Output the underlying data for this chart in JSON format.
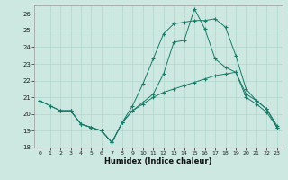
{
  "xlabel": "Humidex (Indice chaleur)",
  "background_color": "#cce8e0",
  "grid_color": "#b0d8cc",
  "line_color": "#1a7a6a",
  "ylim": [
    18,
    26.5
  ],
  "xlim": [
    -0.5,
    23.5
  ],
  "yticks": [
    18,
    19,
    20,
    21,
    22,
    23,
    24,
    25,
    26
  ],
  "xticks": [
    0,
    1,
    2,
    3,
    4,
    5,
    6,
    7,
    8,
    9,
    10,
    11,
    12,
    13,
    14,
    15,
    16,
    17,
    18,
    19,
    20,
    21,
    22,
    23
  ],
  "line1_x": [
    0,
    1,
    2,
    3,
    4,
    5,
    6,
    7,
    8,
    9,
    10,
    11,
    12,
    13,
    14,
    15,
    16,
    17,
    18,
    19,
    20,
    21,
    22,
    23
  ],
  "line1_y": [
    20.8,
    20.5,
    20.2,
    20.2,
    19.4,
    19.2,
    19.0,
    18.3,
    19.5,
    20.2,
    20.6,
    21.0,
    21.3,
    21.5,
    21.7,
    21.9,
    22.1,
    22.3,
    22.4,
    22.5,
    21.2,
    20.8,
    20.3,
    19.2
  ],
  "line2_x": [
    2,
    3,
    4,
    5,
    6,
    7,
    8,
    9,
    10,
    11,
    12,
    13,
    14,
    15,
    16,
    17,
    18,
    19,
    20,
    21,
    22,
    23
  ],
  "line2_y": [
    20.2,
    20.2,
    19.4,
    19.2,
    19.0,
    18.3,
    19.5,
    20.5,
    21.8,
    23.3,
    24.8,
    25.4,
    25.5,
    25.6,
    25.6,
    25.7,
    25.2,
    23.5,
    21.5,
    20.8,
    20.3,
    19.3
  ],
  "line3_x": [
    0,
    1,
    2,
    3,
    4,
    5,
    6,
    7,
    8,
    9,
    10,
    11,
    12,
    13,
    14,
    15,
    16,
    17,
    18,
    19,
    20,
    21,
    22,
    23
  ],
  "line3_y": [
    20.8,
    20.5,
    20.2,
    20.2,
    19.4,
    19.2,
    19.0,
    18.3,
    19.5,
    20.2,
    20.7,
    21.2,
    22.4,
    24.3,
    24.4,
    26.3,
    25.1,
    23.3,
    22.8,
    22.5,
    21.0,
    20.6,
    20.1,
    19.2
  ]
}
